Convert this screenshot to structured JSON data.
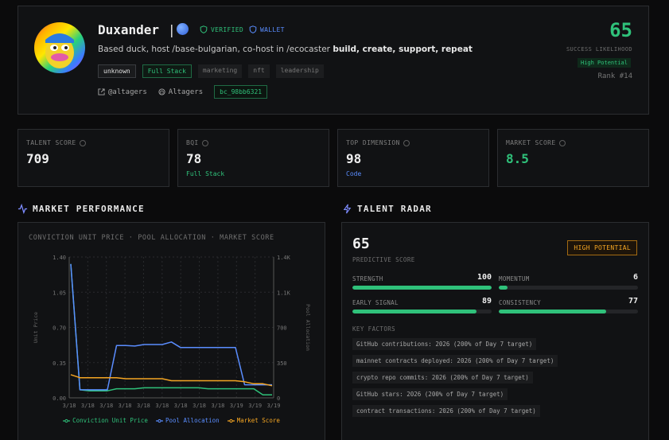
{
  "profile": {
    "name": "Duxander",
    "badges": {
      "verified": "VERIFIED",
      "wallet": "WALLET"
    },
    "bio_lead": "Based duck, host /base-bulgarian, co-host in /ecocaster",
    "bio_bold": "build, create, support, repeat",
    "tags": [
      "unknown",
      "Full Stack",
      "marketing",
      "nft",
      "leadership"
    ],
    "twitter": "@altagers",
    "github": "Altagers",
    "code": "bc_98bb6321",
    "score": "65",
    "score_label": "SUCCESS LIKELIHOOD",
    "score_chip": "High Potential",
    "rank": "Rank #14"
  },
  "stats": [
    {
      "label": "TALENT SCORE",
      "value": "709",
      "sub": ""
    },
    {
      "label": "BQI",
      "value": "78",
      "sub": "Full Stack"
    },
    {
      "label": "TOP DIMENSION",
      "value": "98",
      "sub": "Code"
    },
    {
      "label": "MARKET SCORE",
      "value": "8.5",
      "sub": ""
    }
  ],
  "colors": {
    "green": "#2fc17a",
    "blue": "#5a8dff",
    "orange": "#f5a623",
    "white": "#eeeeee"
  },
  "sections": {
    "market": "MARKET PERFORMANCE",
    "radar": "TALENT RADAR"
  },
  "chart_title": "CONVICTION UNIT PRICE · POOL ALLOCATION · MARKET SCORE",
  "chart_data": {
    "type": "line",
    "x": [
      "3/18",
      "3/18",
      "3/18",
      "3/18",
      "3/18",
      "3/18",
      "3/18",
      "3/18",
      "3/18",
      "3/18",
      "3/18",
      "3/18",
      "3/18",
      "3/18",
      "3/18",
      "3/18",
      "3/18",
      "3/19",
      "3/19",
      "3/19",
      "3/19",
      "3/19",
      "3/19"
    ],
    "x_ticks": [
      "3/18",
      "3/18",
      "3/18",
      "3/18",
      "3/18",
      "3/18",
      "3/18",
      "3/18",
      "3/18",
      "3/19",
      "3/19",
      "3/19"
    ],
    "ylabel": "Unit Price",
    "y2label": "Pool Allocation",
    "ylim": [
      0,
      1.4
    ],
    "y_ticks": [
      "0.00",
      "0.35",
      "0.70",
      "1.05",
      "1.40"
    ],
    "y2lim": [
      0,
      1400
    ],
    "y2_ticks": [
      "0",
      "350",
      "700",
      "1.1K",
      "1.4K"
    ],
    "series": [
      {
        "name": "Conviction Unit Price",
        "axis": "left",
        "color": "#2fc17a",
        "values": [
          1.33,
          0.08,
          0.07,
          0.07,
          0.07,
          0.09,
          0.09,
          0.09,
          0.1,
          0.1,
          0.1,
          0.1,
          0.1,
          0.1,
          0.1,
          0.09,
          0.09,
          0.09,
          0.09,
          0.09,
          0.09,
          0.03,
          0.03
        ]
      },
      {
        "name": "Pool Allocation",
        "axis": "right",
        "color": "#5a8dff",
        "values": [
          1330,
          80,
          80,
          80,
          80,
          520,
          520,
          515,
          530,
          530,
          530,
          555,
          500,
          500,
          500,
          500,
          500,
          500,
          500,
          130,
          130,
          130,
          130
        ]
      },
      {
        "name": "Market Score",
        "axis": "left",
        "color": "#f5a623",
        "values": [
          0.23,
          0.2,
          0.2,
          0.2,
          0.2,
          0.2,
          0.19,
          0.19,
          0.19,
          0.19,
          0.19,
          0.17,
          0.17,
          0.17,
          0.17,
          0.17,
          0.17,
          0.17,
          0.17,
          0.16,
          0.14,
          0.14,
          0.12
        ]
      }
    ],
    "grid": true,
    "legend": "bottom"
  },
  "radar": {
    "score": "65",
    "score_label": "PREDICTIVE SCORE",
    "chip": "HIGH POTENTIAL",
    "metrics": [
      {
        "label": "STRENGTH",
        "value": 100
      },
      {
        "label": "MOMENTUM",
        "value": 6
      },
      {
        "label": "EARLY SIGNAL",
        "value": 89
      },
      {
        "label": "CONSISTENCY",
        "value": 77
      }
    ],
    "key_factors_title": "KEY FACTORS",
    "key_factors": [
      "GitHub contributions: 2026 (200% of Day 7 target)",
      "mainnet contracts deployed: 2026 (200% of Day 7 target)",
      "crypto repo commits: 2026 (200% of Day 7 target)",
      "GitHub stars: 2026 (200% of Day 7 target)",
      "contract transactions: 2026 (200% of Day 7 target)"
    ]
  }
}
